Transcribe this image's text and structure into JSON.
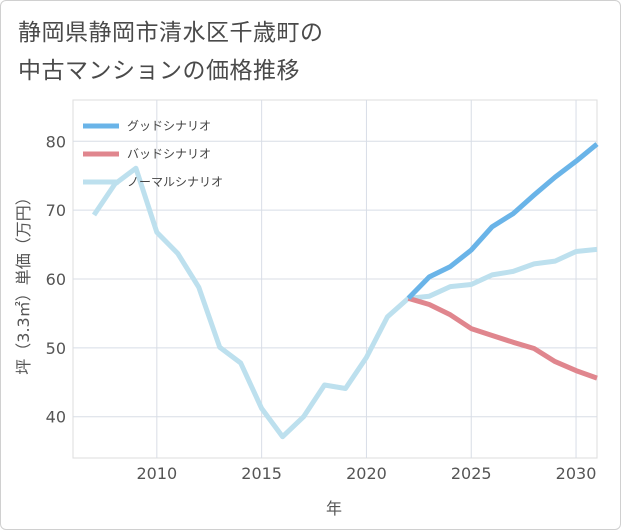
{
  "title_lines": [
    "静岡県静岡市清水区千歳町の",
    "中古マンションの価格推移"
  ],
  "chart_data": {
    "type": "line",
    "xlabel": "年",
    "ylabel": "坪（3.3㎡）単価（万円）",
    "xlim": [
      2006,
      2031
    ],
    "ylim": [
      34,
      86
    ],
    "x_ticks": [
      2010,
      2015,
      2020,
      2025,
      2030
    ],
    "y_ticks": [
      40,
      50,
      60,
      70,
      80
    ],
    "grid": true,
    "legend_position": "top-left",
    "series": [
      {
        "name": "グッドシナリオ",
        "color": "#6ab4e8",
        "x": [
          2022,
          2023,
          2024,
          2025,
          2026,
          2027,
          2028,
          2029,
          2030,
          2031
        ],
        "values": [
          57.2,
          60.3,
          61.8,
          64.2,
          67.6,
          69.5,
          72.2,
          74.8,
          77.1,
          79.6
        ]
      },
      {
        "name": "バッドシナリオ",
        "color": "#e0868e",
        "x": [
          2022,
          2023,
          2024,
          2025,
          2026,
          2027,
          2028,
          2029,
          2030,
          2031
        ],
        "values": [
          57.2,
          56.3,
          54.8,
          52.8,
          51.8,
          50.8,
          49.9,
          48.0,
          46.7,
          45.6
        ]
      },
      {
        "name": "ノーマルシナリオ",
        "color": "#bde0ee",
        "x": [
          2007,
          2008,
          2009,
          2010,
          2011,
          2012,
          2013,
          2014,
          2015,
          2016,
          2017,
          2018,
          2019,
          2020,
          2021,
          2022,
          2023,
          2024,
          2025,
          2026,
          2027,
          2028,
          2029,
          2030,
          2031
        ],
        "values": [
          69.3,
          73.8,
          76.1,
          66.8,
          63.7,
          58.8,
          50.1,
          47.8,
          41.2,
          37.1,
          40.0,
          44.6,
          44.1,
          48.6,
          54.5,
          57.2,
          57.5,
          58.9,
          59.2,
          60.6,
          61.1,
          62.2,
          62.6,
          64.0,
          64.3
        ]
      }
    ]
  }
}
